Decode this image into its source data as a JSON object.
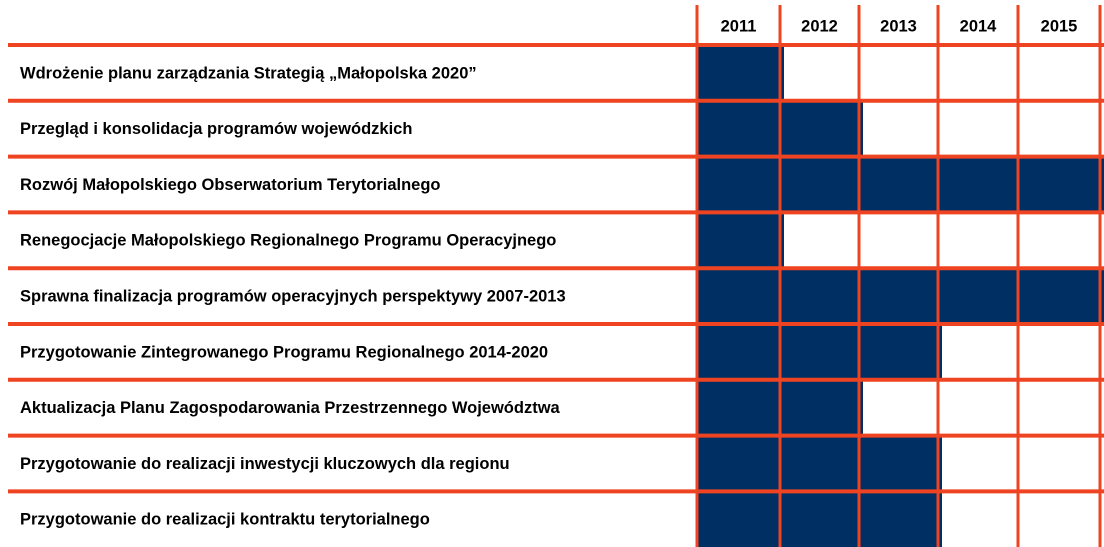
{
  "table": {
    "columns": [
      "2011",
      "2012",
      "2013",
      "2014",
      "2015"
    ],
    "rows": [
      {
        "label": "Wdrożenie planu zarządzania Strategią „Małopolska 2020”",
        "active": [
          true,
          false,
          false,
          false,
          false
        ]
      },
      {
        "label": "Przegląd i konsolidacja programów wojewódzkich",
        "active": [
          true,
          true,
          false,
          false,
          false
        ]
      },
      {
        "label": "Rozwój Małopolskiego Obserwatorium Terytorialnego",
        "active": [
          true,
          true,
          true,
          true,
          true
        ]
      },
      {
        "label": "Renegocjacje Małopolskiego Regionalnego Programu Operacyjnego",
        "active": [
          true,
          false,
          false,
          false,
          false
        ]
      },
      {
        "label": "Sprawna finalizacja programów operacyjnych perspektywy 2007-2013",
        "active": [
          true,
          true,
          true,
          true,
          true
        ]
      },
      {
        "label": "Przygotowanie Zintegrowanego Programu Regionalnego 2014-2020",
        "active": [
          true,
          true,
          true,
          false,
          false
        ]
      },
      {
        "label": "Aktualizacja Planu Zagospodarowania Przestrzennego Województwa",
        "active": [
          true,
          true,
          false,
          false,
          false
        ]
      },
      {
        "label": "Przygotowanie do realizacji inwestycji kluczowych dla regionu",
        "active": [
          true,
          true,
          true,
          false,
          false
        ]
      },
      {
        "label": "Przygotowanie do realizacji kontraktu terytorialnego",
        "active": [
          true,
          true,
          true,
          false,
          false
        ]
      }
    ]
  }
}
